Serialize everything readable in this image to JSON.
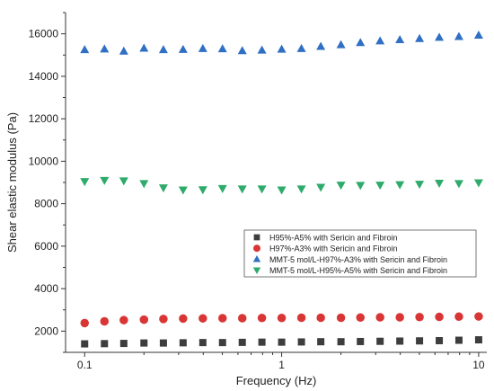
{
  "chart_data": {
    "type": "scatter",
    "title": "",
    "xlabel": "Frequency (Hz)",
    "ylabel": "Shear elastic modulus (Pa)",
    "x_scale": "log",
    "xlim": [
      0.08,
      11
    ],
    "ylim": [
      1000,
      17000
    ],
    "x_ticks": [
      0.1,
      1,
      10
    ],
    "x_tick_labels": [
      "0.1",
      "1",
      "10"
    ],
    "y_ticks": [
      2000,
      4000,
      6000,
      8000,
      10000,
      12000,
      14000,
      16000
    ],
    "y_tick_labels": [
      "2000",
      "4000",
      "6000",
      "8000",
      "10000",
      "12000",
      "14000",
      "16000"
    ],
    "grid": false,
    "legend_position": "lower-right",
    "x": [
      0.1,
      0.126,
      0.158,
      0.2,
      0.251,
      0.316,
      0.398,
      0.501,
      0.631,
      0.794,
      1,
      1.26,
      1.58,
      2,
      2.51,
      3.16,
      3.98,
      5.01,
      6.31,
      7.94,
      10
    ],
    "series": [
      {
        "name": "H95%-A5% with Sericin and Fibroin",
        "marker": "square",
        "color": "#3d3d3d",
        "values": [
          1400,
          1410,
          1420,
          1440,
          1440,
          1450,
          1460,
          1460,
          1470,
          1480,
          1480,
          1490,
          1500,
          1500,
          1510,
          1520,
          1530,
          1540,
          1550,
          1570,
          1590
        ]
      },
      {
        "name": "H97%-A3% with Sericin and Fibroin",
        "marker": "circle",
        "color": "#d93535",
        "values": [
          2380,
          2460,
          2520,
          2540,
          2570,
          2590,
          2600,
          2610,
          2610,
          2620,
          2620,
          2630,
          2630,
          2630,
          2640,
          2650,
          2650,
          2660,
          2670,
          2680,
          2690
        ]
      },
      {
        "name": "MMT-5 mol/L-H97%-A3% with Sericin and Fibroin",
        "marker": "triangle-up",
        "color": "#2f6fc4",
        "values": [
          15250,
          15280,
          15180,
          15320,
          15250,
          15260,
          15300,
          15290,
          15200,
          15230,
          15270,
          15300,
          15400,
          15480,
          15580,
          15660,
          15720,
          15770,
          15830,
          15870,
          15930
        ]
      },
      {
        "name": "MMT-5 mol/L-H95%-A5% with Sericin and Fibroin",
        "marker": "triangle-down",
        "color": "#2eab6b",
        "values": [
          9050,
          9100,
          9080,
          8950,
          8750,
          8650,
          8660,
          8720,
          8700,
          8700,
          8650,
          8700,
          8780,
          8880,
          8870,
          8880,
          8900,
          8920,
          8970,
          8950,
          8990
        ]
      }
    ]
  }
}
